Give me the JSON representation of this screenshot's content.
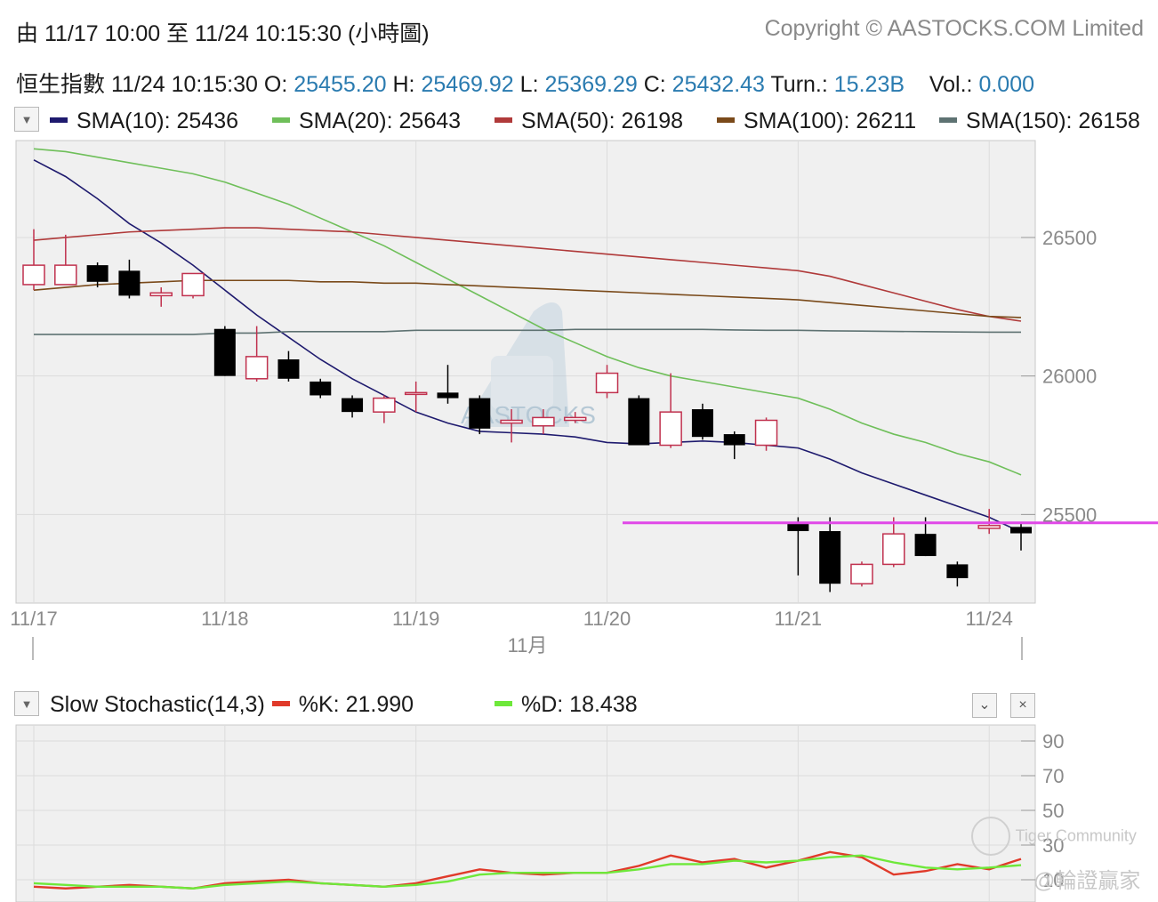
{
  "header": {
    "range_text": "由  11/17 10:00 至  11/24 10:15:30 (小時圖)",
    "copyright": "Copyright © AASTOCKS.COM Limited"
  },
  "quote": {
    "name": "恒生指數",
    "time": "11/24 10:15:30",
    "open_label": "O:",
    "open": "25455.20",
    "high_label": "H:",
    "high": "25469.92",
    "low_label": "L:",
    "low": "25369.29",
    "close_label": "C:",
    "close": "25432.43",
    "turn_label": "Turn.:",
    "turn": "15.23B",
    "vol_label": "Vol.:",
    "vol": "0.000"
  },
  "sma_legend": [
    {
      "label": "SMA(10): 25436",
      "color": "#1e1a6e"
    },
    {
      "label": "SMA(20): 25643",
      "color": "#6fbf5a"
    },
    {
      "label": "SMA(50): 26198",
      "color": "#b03a3a"
    },
    {
      "label": "SMA(100): 26211",
      "color": "#7a4a1a"
    },
    {
      "label": "SMA(150): 26158",
      "color": "#5e7272"
    }
  ],
  "stoch_legend": {
    "title": "Slow Stochastic(14,3)",
    "k_label": "%K: 21.990",
    "k_color": "#e03a2a",
    "d_label": "%D: 18.438",
    "d_color": "#6ee83a"
  },
  "watermark": {
    "center": "AASTOCKS",
    "community": "Tiger Community",
    "author": "@輪證贏家"
  },
  "colors": {
    "up": "#c0314e",
    "down": "#000000",
    "support_line": "#e048e8"
  },
  "chart_data": [
    {
      "type": "candlestick",
      "x_tick_labels": [
        "11/17",
        "11/18",
        "11/19",
        "11/20",
        "11/21",
        "11/24"
      ],
      "x_month_label": "11月",
      "y_ticks": [
        25500,
        26000,
        26500
      ],
      "ylim": [
        25180,
        26850
      ],
      "horizontal_line": 25470,
      "candles": [
        {
          "o": 26330,
          "h": 26530,
          "l": 26310,
          "c": 26400
        },
        {
          "o": 26330,
          "h": 26510,
          "l": 26330,
          "c": 26400
        },
        {
          "o": 26400,
          "h": 26410,
          "l": 26320,
          "c": 26340
        },
        {
          "o": 26380,
          "h": 26420,
          "l": 26280,
          "c": 26290
        },
        {
          "o": 26290,
          "h": 26320,
          "l": 26250,
          "c": 26300
        },
        {
          "o": 26290,
          "h": 26360,
          "l": 26280,
          "c": 26370
        },
        {
          "o": 26170,
          "h": 26180,
          "l": 26000,
          "c": 26000
        },
        {
          "o": 25990,
          "h": 26180,
          "l": 25980,
          "c": 26070
        },
        {
          "o": 26060,
          "h": 26090,
          "l": 25980,
          "c": 25990
        },
        {
          "o": 25980,
          "h": 25990,
          "l": 25920,
          "c": 25930
        },
        {
          "o": 25920,
          "h": 25930,
          "l": 25850,
          "c": 25870
        },
        {
          "o": 25870,
          "h": 25930,
          "l": 25830,
          "c": 25920
        },
        {
          "o": 25940,
          "h": 25980,
          "l": 25870,
          "c": 25940
        },
        {
          "o": 25940,
          "h": 26040,
          "l": 25900,
          "c": 25920
        },
        {
          "o": 25920,
          "h": 25930,
          "l": 25790,
          "c": 25810
        },
        {
          "o": 25830,
          "h": 25880,
          "l": 25760,
          "c": 25840
        },
        {
          "o": 25820,
          "h": 25880,
          "l": 25790,
          "c": 25850
        },
        {
          "o": 25840,
          "h": 25870,
          "l": 25830,
          "c": 25850
        },
        {
          "o": 25940,
          "h": 26040,
          "l": 25920,
          "c": 26010
        },
        {
          "o": 25920,
          "h": 25930,
          "l": 25750,
          "c": 25750
        },
        {
          "o": 25750,
          "h": 26010,
          "l": 25740,
          "c": 25870
        },
        {
          "o": 25880,
          "h": 25900,
          "l": 25770,
          "c": 25780
        },
        {
          "o": 25790,
          "h": 25800,
          "l": 25700,
          "c": 25750
        },
        {
          "o": 25750,
          "h": 25850,
          "l": 25730,
          "c": 25840
        },
        {
          "o": 25470,
          "h": 25490,
          "l": 25280,
          "c": 25440
        },
        {
          "o": 25440,
          "h": 25490,
          "l": 25220,
          "c": 25250
        },
        {
          "o": 25250,
          "h": 25330,
          "l": 25240,
          "c": 25320
        },
        {
          "o": 25320,
          "h": 25490,
          "l": 25310,
          "c": 25430
        },
        {
          "o": 25430,
          "h": 25490,
          "l": 25350,
          "c": 25350
        },
        {
          "o": 25320,
          "h": 25330,
          "l": 25240,
          "c": 25270
        },
        {
          "o": 25450,
          "h": 25520,
          "l": 25430,
          "c": 25460
        },
        {
          "o": 25455,
          "h": 25470,
          "l": 25370,
          "c": 25432
        }
      ],
      "series": [
        {
          "name": "SMA(10)",
          "values": [
            26780,
            26720,
            26640,
            26550,
            26480,
            26400,
            26310,
            26220,
            26140,
            26060,
            25990,
            25930,
            25870,
            25830,
            25800,
            25795,
            25790,
            25780,
            25760,
            25755,
            25760,
            25765,
            25760,
            25750,
            25740,
            25700,
            25650,
            25610,
            25570,
            25530,
            25490,
            25436
          ]
        },
        {
          "name": "SMA(20)",
          "values": [
            26820,
            26810,
            26790,
            26770,
            26750,
            26730,
            26700,
            26660,
            26620,
            26570,
            26520,
            26470,
            26410,
            26350,
            26290,
            26230,
            26170,
            26120,
            26070,
            26030,
            26000,
            25980,
            25960,
            25940,
            25920,
            25880,
            25830,
            25790,
            25760,
            25720,
            25690,
            25643
          ]
        },
        {
          "name": "SMA(50)",
          "values": [
            26490,
            26500,
            26510,
            26520,
            26525,
            26530,
            26535,
            26535,
            26530,
            26525,
            26520,
            26510,
            26500,
            26490,
            26480,
            26470,
            26460,
            26450,
            26440,
            26430,
            26420,
            26410,
            26400,
            26390,
            26380,
            26360,
            26330,
            26300,
            26270,
            26240,
            26215,
            26198
          ]
        },
        {
          "name": "SMA(100)",
          "values": [
            26310,
            26320,
            26330,
            26335,
            26340,
            26345,
            26345,
            26345,
            26345,
            26340,
            26340,
            26335,
            26335,
            26330,
            26325,
            26320,
            26315,
            26310,
            26305,
            26300,
            26295,
            26290,
            26285,
            26280,
            26275,
            26265,
            26255,
            26245,
            26235,
            26225,
            26215,
            26211
          ]
        },
        {
          "name": "SMA(150)",
          "values": [
            26150,
            26150,
            26150,
            26150,
            26150,
            26150,
            26155,
            26155,
            26160,
            26160,
            26160,
            26160,
            26165,
            26165,
            26165,
            26165,
            26165,
            26168,
            26168,
            26168,
            26168,
            26168,
            26166,
            26165,
            26165,
            26163,
            26162,
            26161,
            26160,
            26159,
            26158,
            26158
          ]
        }
      ]
    },
    {
      "type": "line",
      "y_ticks": [
        10,
        30,
        50,
        70,
        90
      ],
      "ylim": [
        0,
        100
      ],
      "series": [
        {
          "name": "%K",
          "values": [
            6,
            5,
            6,
            7,
            6,
            5,
            8,
            9,
            10,
            8,
            7,
            6,
            8,
            12,
            16,
            14,
            13,
            14,
            14,
            18,
            24,
            20,
            22,
            17,
            21,
            26,
            23,
            13,
            15,
            19,
            16,
            21.99
          ]
        },
        {
          "name": "%D",
          "values": [
            8,
            7,
            6,
            6,
            6,
            5,
            7,
            8,
            9,
            8,
            7,
            6,
            7,
            9,
            13,
            14,
            14,
            14,
            14,
            16,
            19,
            19,
            21,
            20,
            21,
            23,
            24,
            20,
            17,
            16,
            17,
            18.438
          ]
        }
      ]
    }
  ]
}
